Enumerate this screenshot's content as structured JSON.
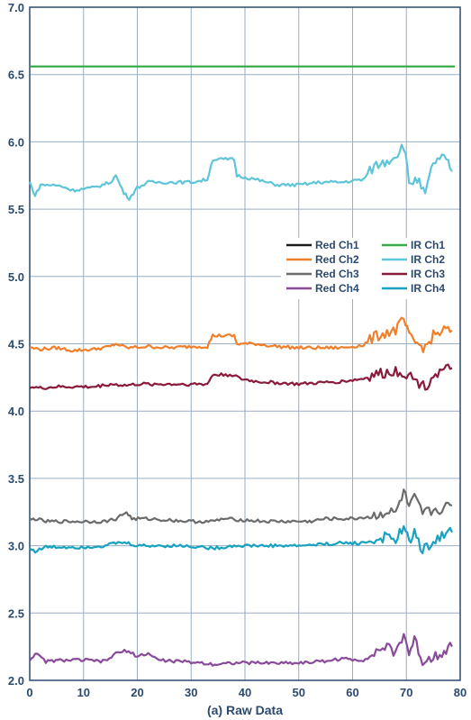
{
  "chart_data": {
    "type": "line",
    "caption": "(a) Raw Data",
    "title": "",
    "xlabel": "",
    "ylabel": "",
    "xlim": [
      0,
      80
    ],
    "ylim": [
      2.0,
      7.0
    ],
    "x_ticks": [
      0,
      10,
      20,
      30,
      40,
      50,
      60,
      70,
      80
    ],
    "y_ticks": [
      "2.0",
      "2.5",
      "3.0",
      "3.5",
      "4.0",
      "4.5",
      "5.0",
      "5.5",
      "6.0",
      "6.5",
      "7.0"
    ],
    "grid": true,
    "legend_position": "right, middle",
    "series": [
      {
        "name": "Red Ch1",
        "color": "#1a1a1a",
        "points": []
      },
      {
        "name": "IR Ch1",
        "color": "#3aab4a",
        "points": [
          [
            0,
            6.56
          ],
          [
            79,
            6.56
          ]
        ]
      },
      {
        "name": "Red Ch2",
        "color": "#f07f2a",
        "points": [
          [
            0,
            4.47
          ],
          [
            2,
            4.46
          ],
          [
            5,
            4.47
          ],
          [
            8,
            4.45
          ],
          [
            12,
            4.46
          ],
          [
            15,
            4.48
          ],
          [
            16,
            4.5
          ],
          [
            18,
            4.47
          ],
          [
            22,
            4.48
          ],
          [
            26,
            4.47
          ],
          [
            30,
            4.48
          ],
          [
            33,
            4.48
          ],
          [
            34,
            4.56
          ],
          [
            38,
            4.56
          ],
          [
            38.5,
            4.5
          ],
          [
            42,
            4.5
          ],
          [
            46,
            4.48
          ],
          [
            50,
            4.47
          ],
          [
            54,
            4.47
          ],
          [
            58,
            4.47
          ],
          [
            62,
            4.49
          ],
          [
            64,
            4.55
          ],
          [
            66,
            4.58
          ],
          [
            68,
            4.6
          ],
          [
            69.5,
            4.68
          ],
          [
            70.5,
            4.55
          ],
          [
            72,
            4.5
          ],
          [
            73.5,
            4.47
          ],
          [
            75,
            4.56
          ],
          [
            77,
            4.6
          ],
          [
            78.5,
            4.6
          ]
        ]
      },
      {
        "name": "IR Ch2",
        "color": "#5ec5d9",
        "points": [
          [
            0,
            5.7
          ],
          [
            1,
            5.6
          ],
          [
            2,
            5.68
          ],
          [
            4,
            5.68
          ],
          [
            6,
            5.67
          ],
          [
            8,
            5.64
          ],
          [
            12,
            5.66
          ],
          [
            15,
            5.7
          ],
          [
            16,
            5.75
          ],
          [
            17.5,
            5.62
          ],
          [
            18.5,
            5.58
          ],
          [
            20,
            5.66
          ],
          [
            22,
            5.7
          ],
          [
            26,
            5.7
          ],
          [
            30,
            5.7
          ],
          [
            33,
            5.72
          ],
          [
            34,
            5.87
          ],
          [
            38,
            5.87
          ],
          [
            38.5,
            5.75
          ],
          [
            42,
            5.72
          ],
          [
            46,
            5.68
          ],
          [
            50,
            5.68
          ],
          [
            54,
            5.7
          ],
          [
            58,
            5.7
          ],
          [
            62,
            5.72
          ],
          [
            64,
            5.82
          ],
          [
            66,
            5.85
          ],
          [
            68,
            5.9
          ],
          [
            69.5,
            5.98
          ],
          [
            70.5,
            5.7
          ],
          [
            72,
            5.72
          ],
          [
            73.5,
            5.6
          ],
          [
            75,
            5.85
          ],
          [
            77,
            5.88
          ],
          [
            78.5,
            5.78
          ]
        ]
      },
      {
        "name": "Red Ch3",
        "color": "#6b6b6b",
        "points": [
          [
            0,
            3.19
          ],
          [
            1,
            3.2
          ],
          [
            3,
            3.18
          ],
          [
            6,
            3.18
          ],
          [
            10,
            3.18
          ],
          [
            14,
            3.18
          ],
          [
            16,
            3.2
          ],
          [
            18,
            3.25
          ],
          [
            19,
            3.2
          ],
          [
            22,
            3.2
          ],
          [
            26,
            3.19
          ],
          [
            30,
            3.18
          ],
          [
            34,
            3.18
          ],
          [
            36,
            3.2
          ],
          [
            40,
            3.19
          ],
          [
            44,
            3.18
          ],
          [
            48,
            3.18
          ],
          [
            52,
            3.18
          ],
          [
            55,
            3.2
          ],
          [
            60,
            3.2
          ],
          [
            64,
            3.22
          ],
          [
            66,
            3.25
          ],
          [
            68,
            3.24
          ],
          [
            69.5,
            3.4
          ],
          [
            70.5,
            3.28
          ],
          [
            71.5,
            3.35
          ],
          [
            73,
            3.24
          ],
          [
            75,
            3.26
          ],
          [
            77,
            3.28
          ],
          [
            78.5,
            3.3
          ]
        ]
      },
      {
        "name": "IR Ch3",
        "color": "#8a1a3a",
        "points": [
          [
            0,
            4.18
          ],
          [
            2,
            4.17
          ],
          [
            5,
            4.18
          ],
          [
            8,
            4.18
          ],
          [
            12,
            4.18
          ],
          [
            15,
            4.2
          ],
          [
            18,
            4.19
          ],
          [
            20,
            4.2
          ],
          [
            24,
            4.2
          ],
          [
            28,
            4.2
          ],
          [
            33,
            4.2
          ],
          [
            34,
            4.27
          ],
          [
            38,
            4.27
          ],
          [
            39,
            4.24
          ],
          [
            42,
            4.22
          ],
          [
            46,
            4.21
          ],
          [
            50,
            4.2
          ],
          [
            54,
            4.21
          ],
          [
            58,
            4.22
          ],
          [
            62,
            4.24
          ],
          [
            64,
            4.27
          ],
          [
            66,
            4.28
          ],
          [
            68,
            4.3
          ],
          [
            70,
            4.28
          ],
          [
            72,
            4.22
          ],
          [
            73.5,
            4.18
          ],
          [
            75,
            4.27
          ],
          [
            77,
            4.3
          ],
          [
            78.5,
            4.32
          ]
        ]
      },
      {
        "name": "Red Ch4",
        "color": "#8a4a9a",
        "points": [
          [
            0,
            2.15
          ],
          [
            1,
            2.2
          ],
          [
            3,
            2.14
          ],
          [
            6,
            2.15
          ],
          [
            10,
            2.15
          ],
          [
            14,
            2.14
          ],
          [
            16,
            2.2
          ],
          [
            18,
            2.22
          ],
          [
            20,
            2.18
          ],
          [
            22,
            2.2
          ],
          [
            24,
            2.15
          ],
          [
            28,
            2.14
          ],
          [
            32,
            2.13
          ],
          [
            34,
            2.12
          ],
          [
            38,
            2.13
          ],
          [
            42,
            2.13
          ],
          [
            46,
            2.13
          ],
          [
            50,
            2.13
          ],
          [
            54,
            2.14
          ],
          [
            58,
            2.16
          ],
          [
            62,
            2.15
          ],
          [
            64,
            2.2
          ],
          [
            66,
            2.25
          ],
          [
            68,
            2.2
          ],
          [
            69.5,
            2.35
          ],
          [
            70.5,
            2.2
          ],
          [
            71.5,
            2.3
          ],
          [
            73,
            2.14
          ],
          [
            75,
            2.18
          ],
          [
            77,
            2.22
          ],
          [
            78.5,
            2.25
          ]
        ]
      },
      {
        "name": "IR Ch4",
        "color": "#17a2c0",
        "points": [
          [
            0,
            2.98
          ],
          [
            1,
            2.96
          ],
          [
            3,
            2.99
          ],
          [
            6,
            2.99
          ],
          [
            10,
            2.99
          ],
          [
            14,
            3.0
          ],
          [
            16,
            3.02
          ],
          [
            18,
            3.02
          ],
          [
            20,
            3.0
          ],
          [
            24,
            3.0
          ],
          [
            28,
            3.0
          ],
          [
            32,
            2.99
          ],
          [
            34,
            2.98
          ],
          [
            38,
            3.0
          ],
          [
            42,
            3.0
          ],
          [
            46,
            3.0
          ],
          [
            50,
            3.0
          ],
          [
            54,
            3.01
          ],
          [
            58,
            3.02
          ],
          [
            62,
            3.02
          ],
          [
            64,
            3.04
          ],
          [
            66,
            3.06
          ],
          [
            68,
            3.05
          ],
          [
            69.5,
            3.12
          ],
          [
            70.5,
            3.04
          ],
          [
            71.5,
            3.1
          ],
          [
            73,
            2.96
          ],
          [
            75,
            3.04
          ],
          [
            77,
            3.08
          ],
          [
            78.5,
            3.1
          ]
        ]
      }
    ]
  }
}
